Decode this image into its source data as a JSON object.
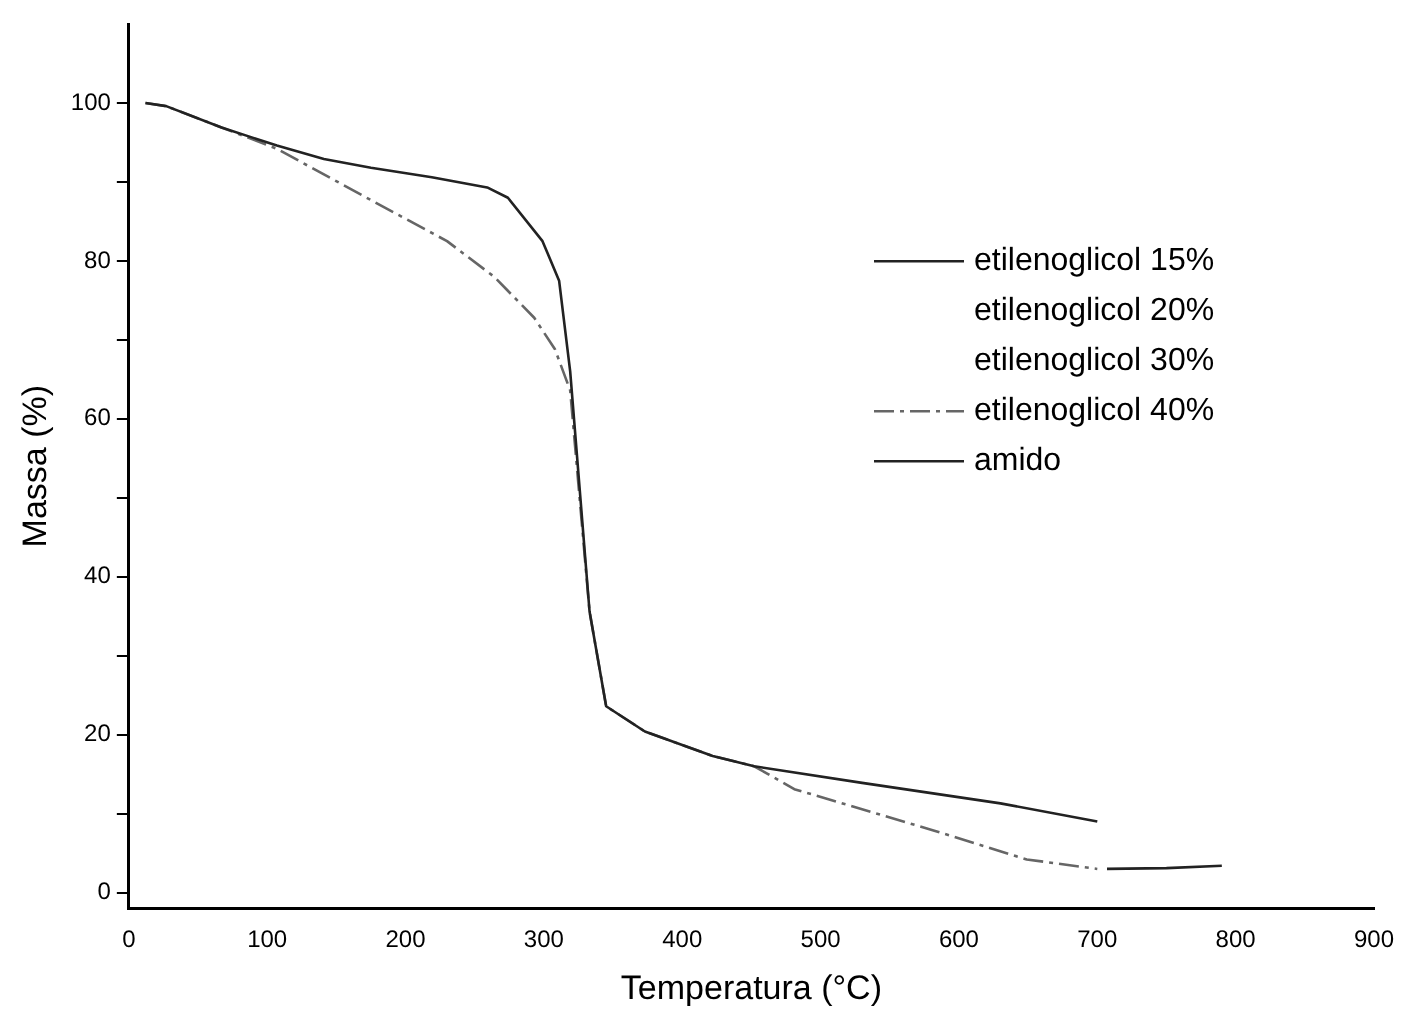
{
  "chart_data": {
    "type": "line",
    "xlabel": "Temperatura (°C)",
    "ylabel": "Massa (%)",
    "xlim": [
      0,
      900
    ],
    "xticks": [
      0,
      100,
      200,
      300,
      400,
      500,
      600,
      700,
      800,
      900
    ],
    "ylim": [
      -2,
      110
    ],
    "yticks": [
      0,
      {
        "value": 10,
        "label": null
      },
      20,
      {
        "value": 30,
        "label": null
      },
      40,
      {
        "value": 50,
        "label": null
      },
      60,
      {
        "value": 70,
        "label": null
      },
      80,
      {
        "value": 90,
        "label": null
      },
      100
    ],
    "grid": false,
    "legend": "right",
    "marker": "none",
    "series": [
      {
        "name": "etilenoglicol 15%",
        "color": "#222222",
        "line_style": "solid",
        "x": [
          12,
          27,
          67,
          107,
          141,
          175,
          219,
          259,
          274,
          299,
          311,
          319,
          333,
          345,
          373,
          422,
          452,
          530,
          630,
          700
        ],
        "values": [
          100,
          99.6,
          96.9,
          94.6,
          92.9,
          91.8,
          90.6,
          89.3,
          88,
          82.5,
          77.5,
          66,
          35.6,
          23.6,
          20.4,
          17.3,
          16,
          13.9,
          11.3,
          9
        ]
      },
      {
        "name": "etilenoglicol 20%"
      },
      {
        "name": "etilenoglicol 30%"
      },
      {
        "name": "etilenoglicol 40%",
        "color": "#666666",
        "line_style": "dashed",
        "x": [
          12,
          27,
          67,
          107,
          175,
          230,
          264,
          293,
          308,
          319,
          333,
          345,
          373,
          422,
          452,
          481,
          581,
          649,
          700
        ],
        "values": [
          100,
          99.6,
          96.9,
          94.2,
          87.7,
          82.5,
          78,
          72.8,
          68.8,
          63.6,
          35.6,
          23.6,
          20.4,
          17.3,
          16,
          13.1,
          7.9,
          4.2,
          3
        ]
      },
      {
        "name": "amido",
        "color": "#222222",
        "line_style": "solid",
        "x": [
          707,
          750,
          790
        ],
        "values": [
          3,
          3.1,
          3.4
        ]
      }
    ]
  }
}
